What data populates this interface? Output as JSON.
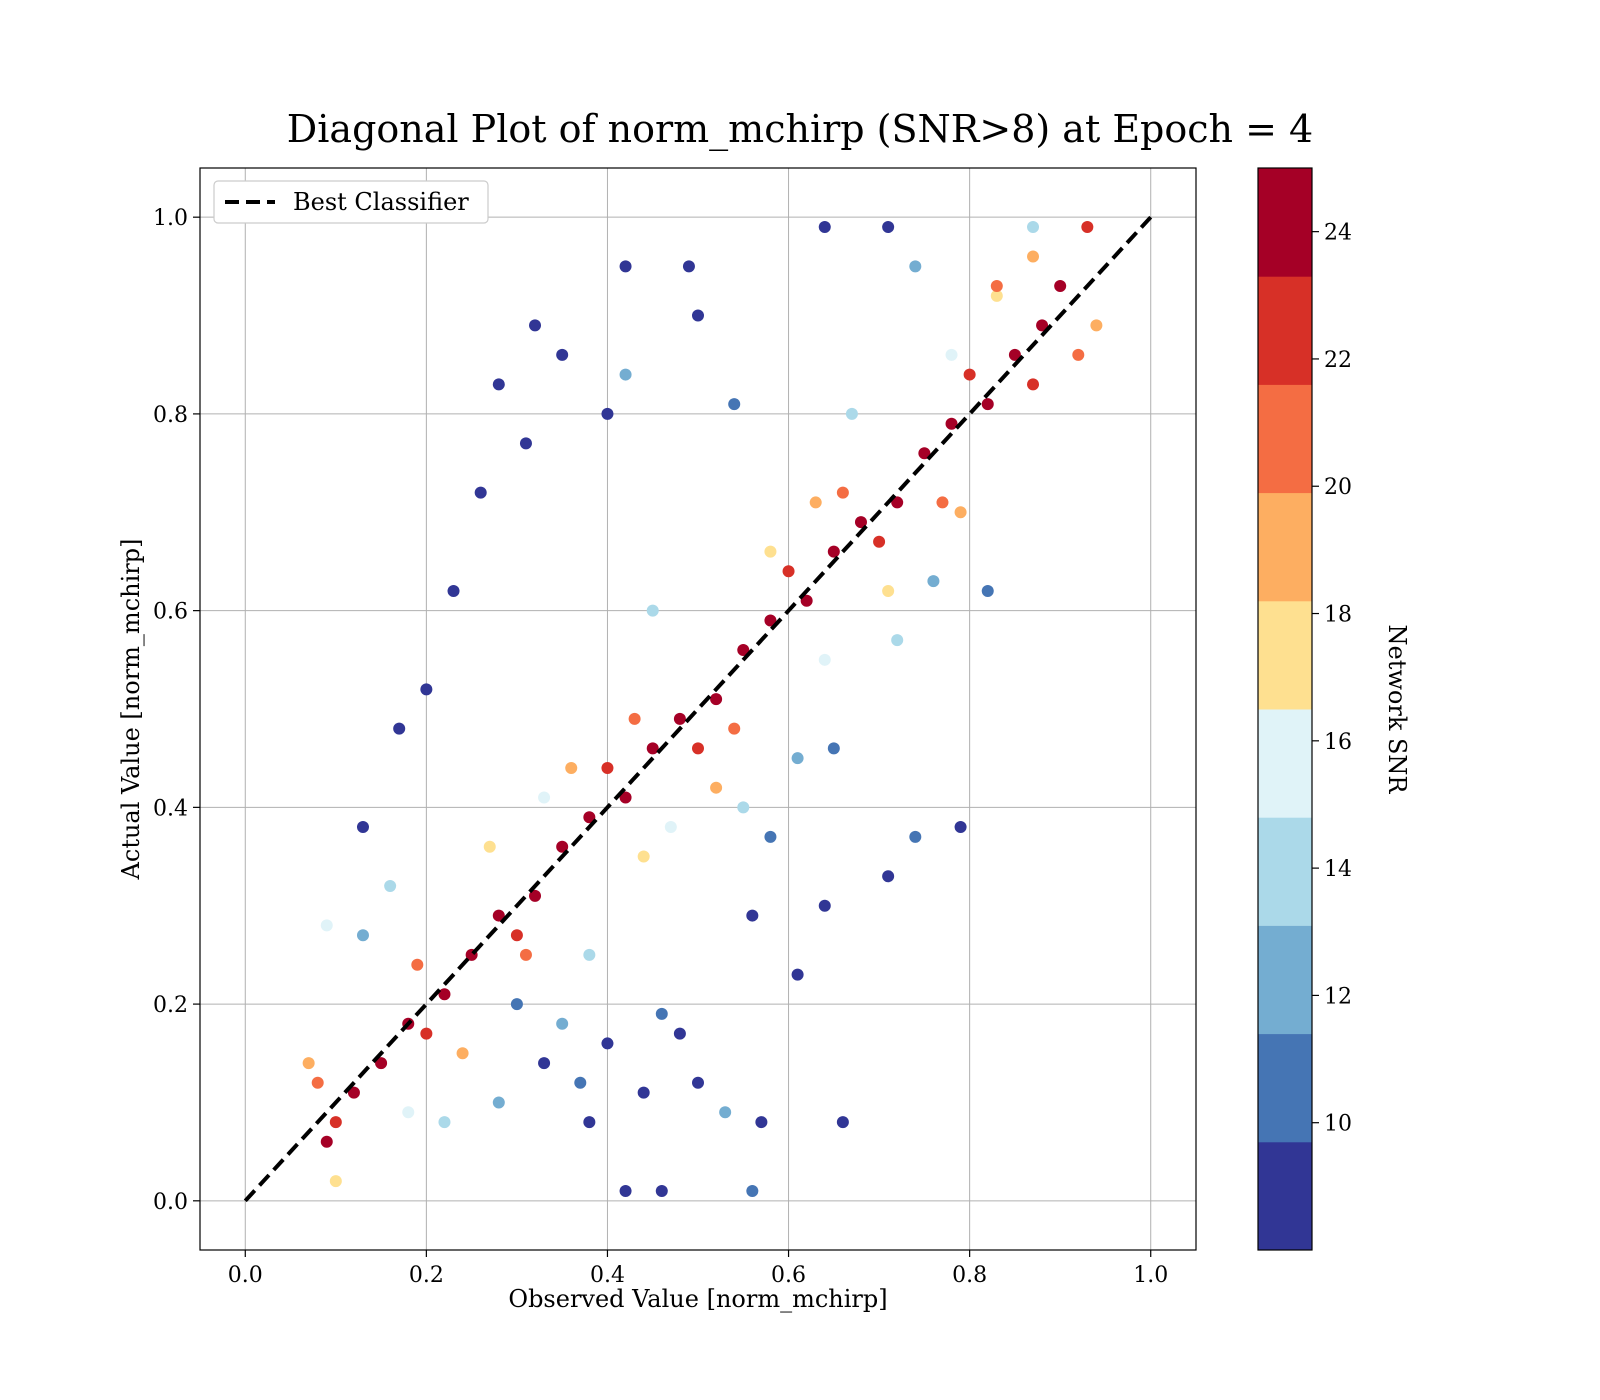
{
  "chart_data": {
    "type": "scatter",
    "title": "Diagonal Plot of norm_mchirp (SNR>8) at Epoch = 4",
    "xlabel": "Observed Value [norm_mchirp]",
    "ylabel": "Actual Value [norm_mchirp]",
    "xlim": [
      -0.05,
      1.05
    ],
    "ylim": [
      -0.05,
      1.05
    ],
    "xticks": [
      "0.0",
      "0.2",
      "0.4",
      "0.6",
      "0.8",
      "1.0"
    ],
    "yticks": [
      "0.0",
      "0.2",
      "0.4",
      "0.6",
      "0.8",
      "1.0"
    ],
    "grid": true,
    "legend": {
      "placement": "upper-left",
      "entries": [
        {
          "label": "Best Classifier",
          "style": "black dashed line"
        }
      ]
    },
    "reference_line": {
      "label": "Best Classifier",
      "x": [
        0.0,
        1.0
      ],
      "y": [
        0.0,
        1.0
      ],
      "color": "#000000",
      "dash": true
    },
    "colorbar": {
      "label": "Network SNR",
      "range": [
        8,
        25
      ],
      "ticks": [
        "10",
        "12",
        "14",
        "16",
        "18",
        "20",
        "22",
        "24"
      ],
      "bins": [
        {
          "from": 8.0,
          "to": 9.7,
          "color": "#313695"
        },
        {
          "from": 9.7,
          "to": 11.4,
          "color": "#4575b4"
        },
        {
          "from": 11.4,
          "to": 13.1,
          "color": "#74add1"
        },
        {
          "from": 13.1,
          "to": 14.8,
          "color": "#abd9e9"
        },
        {
          "from": 14.8,
          "to": 16.5,
          "color": "#e0f3f8"
        },
        {
          "from": 16.5,
          "to": 18.2,
          "color": "#fee090"
        },
        {
          "from": 18.2,
          "to": 19.9,
          "color": "#fdae61"
        },
        {
          "from": 19.9,
          "to": 21.6,
          "color": "#f46d43"
        },
        {
          "from": 21.6,
          "to": 23.3,
          "color": "#d73027"
        },
        {
          "from": 23.3,
          "to": 25.0,
          "color": "#a50026"
        }
      ]
    },
    "points": [
      {
        "x": 0.09,
        "y": 0.06,
        "snr": 24
      },
      {
        "x": 0.12,
        "y": 0.11,
        "snr": 24
      },
      {
        "x": 0.15,
        "y": 0.14,
        "snr": 24
      },
      {
        "x": 0.18,
        "y": 0.18,
        "snr": 24
      },
      {
        "x": 0.22,
        "y": 0.21,
        "snr": 24
      },
      {
        "x": 0.25,
        "y": 0.25,
        "snr": 24
      },
      {
        "x": 0.28,
        "y": 0.29,
        "snr": 24
      },
      {
        "x": 0.32,
        "y": 0.31,
        "snr": 24
      },
      {
        "x": 0.35,
        "y": 0.36,
        "snr": 24
      },
      {
        "x": 0.38,
        "y": 0.39,
        "snr": 24
      },
      {
        "x": 0.42,
        "y": 0.41,
        "snr": 24
      },
      {
        "x": 0.45,
        "y": 0.46,
        "snr": 24
      },
      {
        "x": 0.48,
        "y": 0.49,
        "snr": 24
      },
      {
        "x": 0.52,
        "y": 0.51,
        "snr": 24
      },
      {
        "x": 0.55,
        "y": 0.56,
        "snr": 24
      },
      {
        "x": 0.58,
        "y": 0.59,
        "snr": 24
      },
      {
        "x": 0.62,
        "y": 0.61,
        "snr": 24
      },
      {
        "x": 0.65,
        "y": 0.66,
        "snr": 24
      },
      {
        "x": 0.68,
        "y": 0.69,
        "snr": 24
      },
      {
        "x": 0.72,
        "y": 0.71,
        "snr": 24
      },
      {
        "x": 0.75,
        "y": 0.76,
        "snr": 24
      },
      {
        "x": 0.78,
        "y": 0.79,
        "snr": 24
      },
      {
        "x": 0.82,
        "y": 0.81,
        "snr": 24
      },
      {
        "x": 0.85,
        "y": 0.86,
        "snr": 24
      },
      {
        "x": 0.88,
        "y": 0.89,
        "snr": 24
      },
      {
        "x": 0.9,
        "y": 0.93,
        "snr": 24
      },
      {
        "x": 0.1,
        "y": 0.08,
        "snr": 22
      },
      {
        "x": 0.2,
        "y": 0.17,
        "snr": 22
      },
      {
        "x": 0.3,
        "y": 0.27,
        "snr": 22
      },
      {
        "x": 0.4,
        "y": 0.44,
        "snr": 22
      },
      {
        "x": 0.5,
        "y": 0.46,
        "snr": 22
      },
      {
        "x": 0.6,
        "y": 0.64,
        "snr": 22
      },
      {
        "x": 0.7,
        "y": 0.67,
        "snr": 22
      },
      {
        "x": 0.8,
        "y": 0.84,
        "snr": 22
      },
      {
        "x": 0.87,
        "y": 0.83,
        "snr": 22
      },
      {
        "x": 0.93,
        "y": 0.99,
        "snr": 22
      },
      {
        "x": 0.08,
        "y": 0.12,
        "snr": 20
      },
      {
        "x": 0.19,
        "y": 0.24,
        "snr": 20
      },
      {
        "x": 0.31,
        "y": 0.25,
        "snr": 20
      },
      {
        "x": 0.43,
        "y": 0.49,
        "snr": 20
      },
      {
        "x": 0.54,
        "y": 0.48,
        "snr": 20
      },
      {
        "x": 0.66,
        "y": 0.72,
        "snr": 20
      },
      {
        "x": 0.77,
        "y": 0.71,
        "snr": 20
      },
      {
        "x": 0.83,
        "y": 0.93,
        "snr": 20
      },
      {
        "x": 0.92,
        "y": 0.86,
        "snr": 20
      },
      {
        "x": 0.07,
        "y": 0.14,
        "snr": 19
      },
      {
        "x": 0.24,
        "y": 0.15,
        "snr": 19
      },
      {
        "x": 0.36,
        "y": 0.44,
        "snr": 19
      },
      {
        "x": 0.52,
        "y": 0.42,
        "snr": 19
      },
      {
        "x": 0.63,
        "y": 0.71,
        "snr": 19
      },
      {
        "x": 0.79,
        "y": 0.7,
        "snr": 19
      },
      {
        "x": 0.87,
        "y": 0.96,
        "snr": 19
      },
      {
        "x": 0.94,
        "y": 0.89,
        "snr": 19
      },
      {
        "x": 0.1,
        "y": 0.02,
        "snr": 17
      },
      {
        "x": 0.27,
        "y": 0.36,
        "snr": 17
      },
      {
        "x": 0.44,
        "y": 0.35,
        "snr": 17
      },
      {
        "x": 0.58,
        "y": 0.66,
        "snr": 17
      },
      {
        "x": 0.71,
        "y": 0.62,
        "snr": 17
      },
      {
        "x": 0.83,
        "y": 0.92,
        "snr": 17
      },
      {
        "x": 0.18,
        "y": 0.09,
        "snr": 15.5
      },
      {
        "x": 0.33,
        "y": 0.41,
        "snr": 15.5
      },
      {
        "x": 0.47,
        "y": 0.38,
        "snr": 15.5
      },
      {
        "x": 0.64,
        "y": 0.55,
        "snr": 15.5
      },
      {
        "x": 0.78,
        "y": 0.86,
        "snr": 15.5
      },
      {
        "x": 0.09,
        "y": 0.28,
        "snr": 15.5
      },
      {
        "x": 0.22,
        "y": 0.08,
        "snr": 14
      },
      {
        "x": 0.38,
        "y": 0.25,
        "snr": 14
      },
      {
        "x": 0.45,
        "y": 0.6,
        "snr": 14
      },
      {
        "x": 0.55,
        "y": 0.4,
        "snr": 14
      },
      {
        "x": 0.67,
        "y": 0.8,
        "snr": 14
      },
      {
        "x": 0.72,
        "y": 0.57,
        "snr": 14
      },
      {
        "x": 0.87,
        "y": 0.99,
        "snr": 14
      },
      {
        "x": 0.16,
        "y": 0.32,
        "snr": 14
      },
      {
        "x": 0.28,
        "y": 0.1,
        "snr": 12
      },
      {
        "x": 0.35,
        "y": 0.18,
        "snr": 12
      },
      {
        "x": 0.42,
        "y": 0.84,
        "snr": 12
      },
      {
        "x": 0.53,
        "y": 0.09,
        "snr": 12
      },
      {
        "x": 0.61,
        "y": 0.45,
        "snr": 12
      },
      {
        "x": 0.76,
        "y": 0.63,
        "snr": 12
      },
      {
        "x": 0.74,
        "y": 0.95,
        "snr": 12
      },
      {
        "x": 0.13,
        "y": 0.27,
        "snr": 12
      },
      {
        "x": 0.3,
        "y": 0.2,
        "snr": 10.5
      },
      {
        "x": 0.37,
        "y": 0.12,
        "snr": 10.5
      },
      {
        "x": 0.46,
        "y": 0.19,
        "snr": 10.5
      },
      {
        "x": 0.58,
        "y": 0.37,
        "snr": 10.5
      },
      {
        "x": 0.65,
        "y": 0.46,
        "snr": 10.5
      },
      {
        "x": 0.74,
        "y": 0.37,
        "snr": 10.5
      },
      {
        "x": 0.54,
        "y": 0.81,
        "snr": 10.5
      },
      {
        "x": 0.82,
        "y": 0.62,
        "snr": 10.5
      },
      {
        "x": 0.56,
        "y": 0.01,
        "snr": 10.5
      },
      {
        "x": 0.32,
        "y": 0.89,
        "snr": 9
      },
      {
        "x": 0.42,
        "y": 0.95,
        "snr": 9
      },
      {
        "x": 0.49,
        "y": 0.95,
        "snr": 9
      },
      {
        "x": 0.64,
        "y": 0.99,
        "snr": 9
      },
      {
        "x": 0.71,
        "y": 0.99,
        "snr": 9
      },
      {
        "x": 0.35,
        "y": 0.86,
        "snr": 9
      },
      {
        "x": 0.28,
        "y": 0.83,
        "snr": 9
      },
      {
        "x": 0.31,
        "y": 0.77,
        "snr": 9
      },
      {
        "x": 0.26,
        "y": 0.72,
        "snr": 9
      },
      {
        "x": 0.23,
        "y": 0.62,
        "snr": 9
      },
      {
        "x": 0.2,
        "y": 0.52,
        "snr": 9
      },
      {
        "x": 0.17,
        "y": 0.48,
        "snr": 9
      },
      {
        "x": 0.13,
        "y": 0.38,
        "snr": 9
      },
      {
        "x": 0.4,
        "y": 0.8,
        "snr": 9
      },
      {
        "x": 0.5,
        "y": 0.9,
        "snr": 9
      },
      {
        "x": 0.79,
        "y": 0.38,
        "snr": 9
      },
      {
        "x": 0.71,
        "y": 0.33,
        "snr": 9
      },
      {
        "x": 0.66,
        "y": 0.08,
        "snr": 9
      },
      {
        "x": 0.61,
        "y": 0.23,
        "snr": 9
      },
      {
        "x": 0.64,
        "y": 0.3,
        "snr": 9
      },
      {
        "x": 0.56,
        "y": 0.29,
        "snr": 9
      },
      {
        "x": 0.57,
        "y": 0.08,
        "snr": 9
      },
      {
        "x": 0.5,
        "y": 0.12,
        "snr": 9
      },
      {
        "x": 0.42,
        "y": 0.01,
        "snr": 9
      },
      {
        "x": 0.46,
        "y": 0.01,
        "snr": 9
      },
      {
        "x": 0.38,
        "y": 0.08,
        "snr": 9
      },
      {
        "x": 0.33,
        "y": 0.14,
        "snr": 9
      },
      {
        "x": 0.44,
        "y": 0.11,
        "snr": 9
      },
      {
        "x": 0.48,
        "y": 0.17,
        "snr": 9
      },
      {
        "x": 0.4,
        "y": 0.16,
        "snr": 9
      }
    ]
  }
}
